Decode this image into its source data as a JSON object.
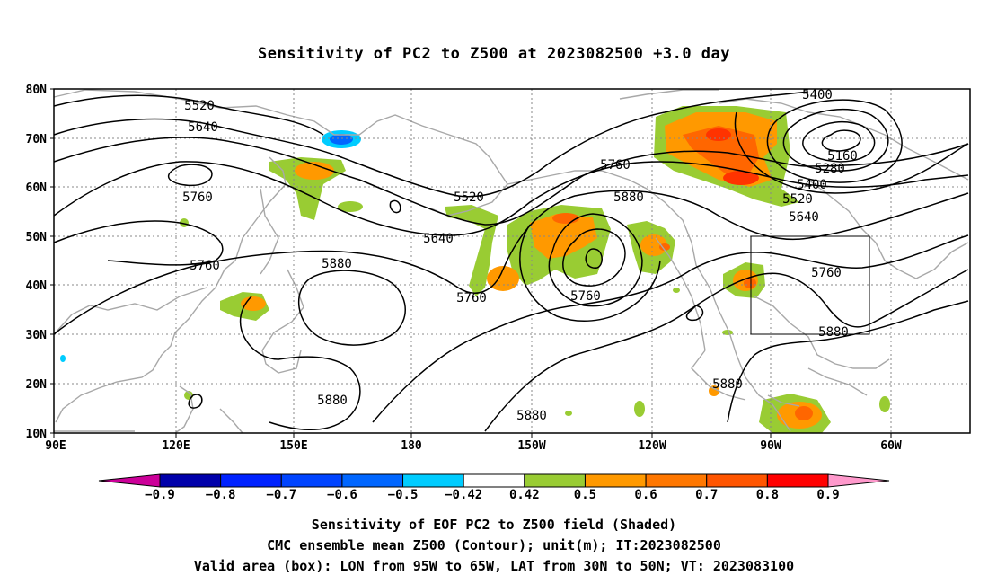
{
  "title": "Sensitivity of PC2 to Z500 at 2023082500 +3.0 day",
  "map": {
    "lat_labels": [
      "80N",
      "70N",
      "60N",
      "50N",
      "40N",
      "30N",
      "20N",
      "10N"
    ],
    "lon_labels": [
      "90E",
      "120E",
      "150E",
      "180",
      "150W",
      "120W",
      "90W",
      "60W"
    ],
    "contour_labels": [
      "5520",
      "5640",
      "5760",
      "5520",
      "5640",
      "5760",
      "5880",
      "5760",
      "5760",
      "5880",
      "5400",
      "5160",
      "5280",
      "5400",
      "5520",
      "5640",
      "5760",
      "5880",
      "5880",
      "5880",
      "5880"
    ],
    "valid_box": {
      "lon_from": "95W",
      "lon_to": "65W",
      "lat_from": "30N",
      "lat_to": "50N"
    },
    "colors": {
      "contour": "#000000",
      "coast": "#a8a8a8",
      "green": "#99cc33",
      "orange": "#ff9900",
      "dark_orange": "#ff6600",
      "red_orange": "#ff3300",
      "blue": "#0066ff",
      "cyan": "#00ccff"
    }
  },
  "colorbar": {
    "labels": [
      "-0.9",
      "-0.8",
      "-0.7",
      "-0.6",
      "-0.5",
      "-0.42",
      "0.42",
      "0.5",
      "0.6",
      "0.7",
      "0.8",
      "0.9"
    ],
    "colors": [
      "#0000aa",
      "#0022ff",
      "#0044ff",
      "#0066ff",
      "#00ccff",
      "#ffffff",
      "#99cc33",
      "#ff9900",
      "#ff7700",
      "#ff5500",
      "#ff0000"
    ],
    "low_end": "#cc0099",
    "high_end": "#ff99cc"
  },
  "captions": [
    "Sensitivity of EOF PC2 to Z500 field (Shaded)",
    "CMC ensemble mean Z500 (Contour); unit(m); IT:2023082500",
    "Valid area (box): LON from 95W to 65W, LAT from 30N to 50N; VT: 2023083100"
  ]
}
